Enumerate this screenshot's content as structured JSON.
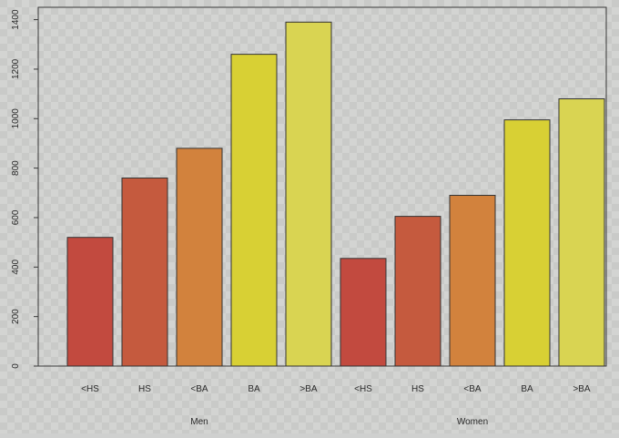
{
  "chart_data": {
    "type": "bar",
    "title": "",
    "xlabel": "",
    "ylabel": "",
    "ylim": [
      0,
      1450
    ],
    "yticks": [
      0,
      200,
      400,
      600,
      800,
      1000,
      1200,
      1400
    ],
    "grid": false,
    "legend": "none",
    "groups": [
      {
        "name": "Men",
        "categories": [
          "<HS",
          "HS",
          "<BA",
          "BA",
          ">BA"
        ],
        "values": [
          520,
          760,
          880,
          1260,
          1390
        ],
        "colors": [
          "#c24a3f",
          "#c55a3e",
          "#d2823d",
          "#d8d034",
          "#d9d452"
        ]
      },
      {
        "name": "Women",
        "categories": [
          "<HS",
          "HS",
          "<BA",
          "BA",
          ">BA"
        ],
        "values": [
          435,
          605,
          690,
          995,
          1080
        ],
        "colors": [
          "#c24a3f",
          "#c55a3e",
          "#d2823d",
          "#d8d034",
          "#d9d452"
        ]
      }
    ]
  }
}
